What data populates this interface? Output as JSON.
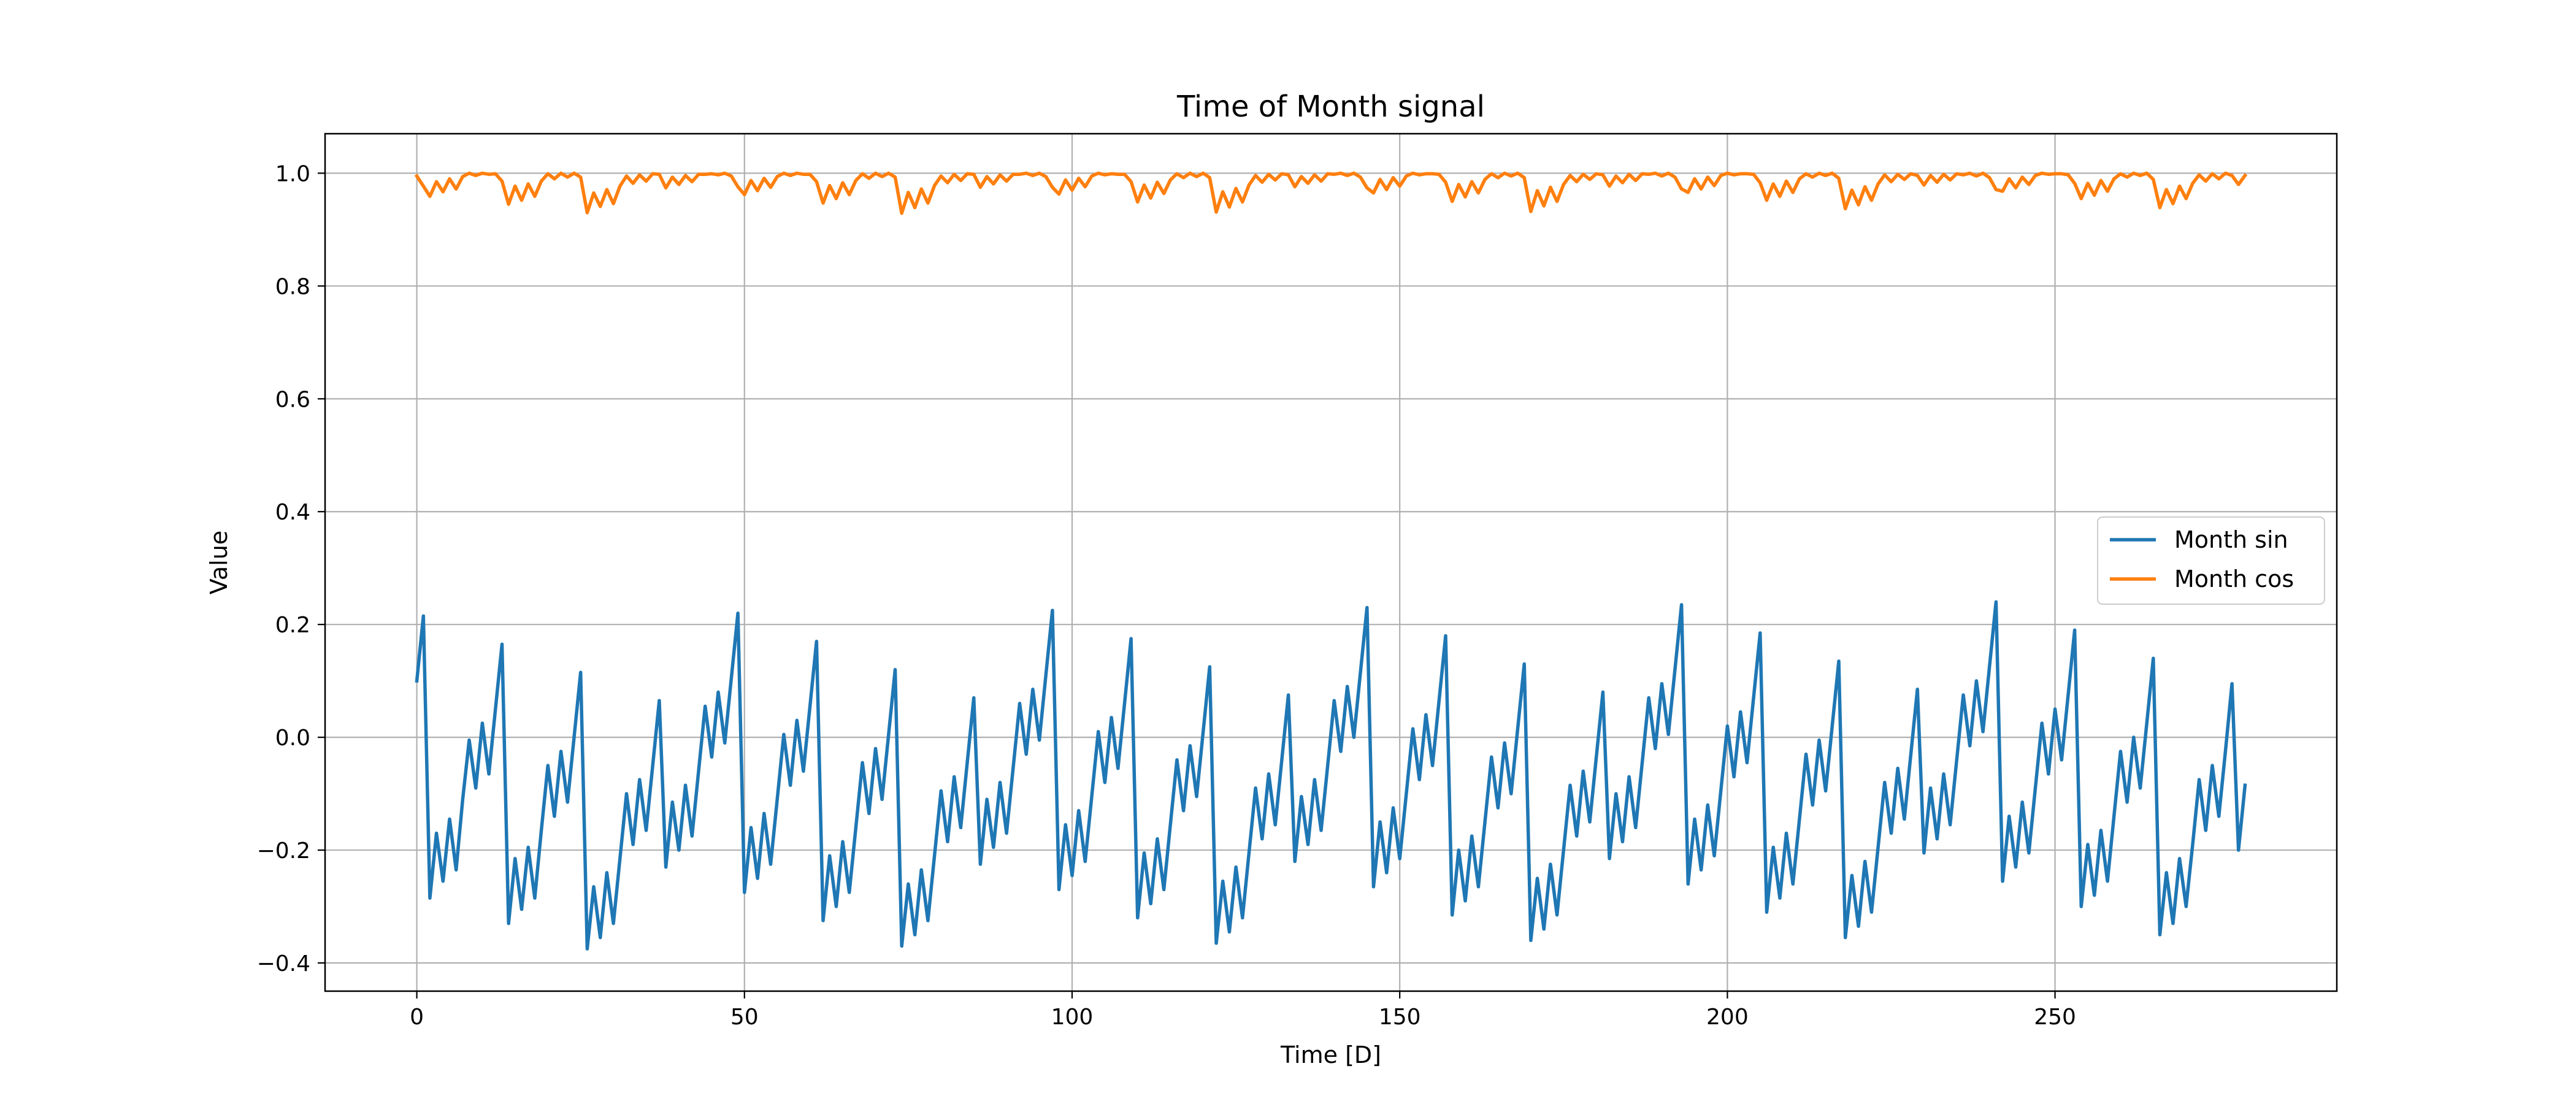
{
  "chart_data": {
    "type": "line",
    "title": "Time of Month signal",
    "xlabel": "Time [D]",
    "ylabel": "Value",
    "xlim": [
      -14,
      293
    ],
    "ylim": [
      -0.45,
      1.07
    ],
    "xticks": [
      0,
      50,
      100,
      150,
      200,
      250
    ],
    "xtick_labels": [
      "0",
      "50",
      "100",
      "150",
      "200",
      "250"
    ],
    "yticks": [
      -0.4,
      -0.2,
      0.0,
      0.2,
      0.4,
      0.6,
      0.8,
      1.0
    ],
    "ytick_labels": [
      "−0.4",
      "−0.2",
      "0.0",
      "0.2",
      "0.4",
      "0.6",
      "0.8",
      "1.0"
    ],
    "grid": true,
    "legend_position": "center-right",
    "series": [
      {
        "name": "Month sin",
        "color": "#1f77b4",
        "x": [
          0,
          1,
          2,
          3,
          4,
          5,
          6,
          7,
          8,
          9,
          10,
          11,
          12,
          13,
          14,
          15,
          16,
          17,
          18,
          19,
          20,
          21,
          22,
          23,
          24,
          25,
          26,
          27,
          28,
          29,
          30,
          31,
          32,
          33,
          34,
          35,
          36,
          37,
          38,
          39,
          40,
          41,
          42,
          43,
          44,
          45,
          46,
          47,
          48,
          49,
          50,
          51,
          52,
          53,
          54,
          55,
          56,
          57,
          58,
          59,
          60,
          61,
          62,
          63,
          64,
          65,
          66,
          67,
          68,
          69,
          70,
          71,
          72,
          73,
          74,
          75,
          76,
          77,
          78,
          79,
          80,
          81,
          82,
          83,
          84,
          85,
          86,
          87,
          88,
          89,
          90,
          91,
          92,
          93,
          94,
          95,
          96,
          97,
          98,
          99,
          100,
          101,
          102,
          103,
          104,
          105,
          106,
          107,
          108,
          109,
          110,
          111,
          112,
          113,
          114,
          115,
          116,
          117,
          118,
          119,
          120,
          121,
          122,
          123,
          124,
          125,
          126,
          127,
          128,
          129,
          130,
          131,
          132,
          133,
          134,
          135,
          136,
          137,
          138,
          139,
          140,
          141,
          142,
          143,
          144,
          145,
          146,
          147,
          148,
          149,
          150,
          151,
          152,
          153,
          154,
          155,
          156,
          157,
          158,
          159,
          160,
          161,
          162,
          163,
          164,
          165,
          166,
          167,
          168,
          169,
          170,
          171,
          172,
          173,
          174,
          175,
          176,
          177,
          178,
          179,
          180,
          181,
          182,
          183,
          184,
          185,
          186,
          187,
          188,
          189,
          190,
          191,
          192,
          193,
          194,
          195,
          196,
          197,
          198,
          199,
          200,
          201,
          202,
          203,
          204,
          205,
          206,
          207,
          208,
          209,
          210,
          211,
          212,
          213,
          214,
          215,
          216,
          217,
          218,
          219,
          220,
          221,
          222,
          223,
          224,
          225,
          226,
          227,
          228,
          229,
          230,
          231,
          232,
          233,
          234,
          235,
          236,
          237,
          238,
          239,
          240,
          241,
          242,
          243,
          244,
          245,
          246,
          247,
          248,
          249,
          250,
          251,
          252,
          253,
          254,
          255,
          256,
          257,
          258,
          259,
          260,
          261,
          262,
          263,
          264,
          265,
          266,
          267,
          268,
          269,
          270,
          271,
          272,
          273,
          274,
          275,
          276,
          277,
          278,
          279
        ],
        "y": [
          0.1,
          0.215,
          -0.285,
          -0.17,
          -0.255,
          -0.145,
          -0.235,
          -0.11,
          -0.005,
          -0.09,
          0.025,
          -0.065,
          0.05,
          0.165,
          -0.33,
          -0.215,
          -0.305,
          -0.195,
          -0.285,
          -0.165,
          -0.05,
          -0.14,
          -0.025,
          -0.115,
          0.0,
          0.115,
          -0.375,
          -0.265,
          -0.355,
          -0.24,
          -0.33,
          -0.215,
          -0.1,
          -0.19,
          -0.075,
          -0.165,
          -0.05,
          0.065,
          -0.23,
          -0.115,
          -0.2,
          -0.085,
          -0.175,
          -0.06,
          0.055,
          -0.035,
          0.08,
          -0.01,
          0.105,
          0.22,
          -0.275,
          -0.16,
          -0.25,
          -0.135,
          -0.225,
          -0.11,
          0.005,
          -0.085,
          0.03,
          -0.06,
          0.055,
          0.17,
          -0.325,
          -0.21,
          -0.3,
          -0.185,
          -0.275,
          -0.16,
          -0.045,
          -0.135,
          -0.02,
          -0.11,
          0.005,
          0.12,
          -0.37,
          -0.26,
          -0.35,
          -0.235,
          -0.325,
          -0.21,
          -0.095,
          -0.185,
          -0.07,
          -0.16,
          -0.045,
          0.07,
          -0.225,
          -0.11,
          -0.195,
          -0.08,
          -0.17,
          -0.055,
          0.06,
          -0.03,
          0.085,
          -0.005,
          0.11,
          0.225,
          -0.27,
          -0.155,
          -0.245,
          -0.13,
          -0.22,
          -0.105,
          0.01,
          -0.08,
          0.035,
          -0.055,
          0.06,
          0.175,
          -0.32,
          -0.205,
          -0.295,
          -0.18,
          -0.27,
          -0.155,
          -0.04,
          -0.13,
          -0.015,
          -0.105,
          0.01,
          0.125,
          -0.365,
          -0.255,
          -0.345,
          -0.23,
          -0.32,
          -0.205,
          -0.09,
          -0.18,
          -0.065,
          -0.155,
          -0.04,
          0.075,
          -0.22,
          -0.105,
          -0.19,
          -0.075,
          -0.165,
          -0.05,
          0.065,
          -0.025,
          0.09,
          0.0,
          0.115,
          0.23,
          -0.265,
          -0.15,
          -0.24,
          -0.125,
          -0.215,
          -0.1,
          0.015,
          -0.075,
          0.04,
          -0.05,
          0.065,
          0.18,
          -0.315,
          -0.2,
          -0.29,
          -0.175,
          -0.265,
          -0.15,
          -0.035,
          -0.125,
          -0.01,
          -0.1,
          0.015,
          0.13,
          -0.36,
          -0.25,
          -0.34,
          -0.225,
          -0.315,
          -0.2,
          -0.085,
          -0.175,
          -0.06,
          -0.15,
          -0.035,
          0.08,
          -0.215,
          -0.1,
          -0.185,
          -0.07,
          -0.16,
          -0.045,
          0.07,
          -0.02,
          0.095,
          0.005,
          0.12,
          0.235,
          -0.26,
          -0.145,
          -0.235,
          -0.12,
          -0.21,
          -0.095,
          0.02,
          -0.07,
          0.045,
          -0.045,
          0.07,
          0.185,
          -0.31,
          -0.195,
          -0.285,
          -0.17,
          -0.26,
          -0.145,
          -0.03,
          -0.12,
          -0.005,
          -0.095,
          0.02,
          0.135,
          -0.355,
          -0.245,
          -0.335,
          -0.22,
          -0.31,
          -0.195,
          -0.08,
          -0.17,
          -0.055,
          -0.145,
          -0.03,
          0.085,
          -0.205,
          -0.09,
          -0.18,
          -0.065,
          -0.155,
          -0.04,
          0.075,
          -0.015,
          0.1,
          0.01,
          0.125,
          0.24,
          -0.255,
          -0.14,
          -0.23,
          -0.115,
          -0.205,
          -0.09,
          0.025,
          -0.065,
          0.05,
          -0.04,
          0.075,
          0.19,
          -0.3,
          -0.19,
          -0.28,
          -0.165,
          -0.255,
          -0.14,
          -0.025,
          -0.115,
          0.0,
          -0.09,
          0.025,
          0.14,
          -0.35,
          -0.24,
          -0.33,
          -0.215,
          -0.3,
          -0.19,
          -0.075,
          -0.165,
          -0.05,
          -0.14,
          -0.025,
          0.095,
          -0.2,
          -0.085
        ]
      },
      {
        "name": "Month cos",
        "color": "#ff7f0e",
        "x": [
          0,
          1,
          2,
          3,
          4,
          5,
          6,
          7,
          8,
          9,
          10,
          11,
          12,
          13,
          14,
          15,
          16,
          17,
          18,
          19,
          20,
          21,
          22,
          23,
          24,
          25,
          26,
          27,
          28,
          29,
          30,
          31,
          32,
          33,
          34,
          35,
          36,
          37,
          38,
          39,
          40,
          41,
          42,
          43,
          44,
          45,
          46,
          47,
          48,
          49,
          50,
          51,
          52,
          53,
          54,
          55,
          56,
          57,
          58,
          59,
          60,
          61,
          62,
          63,
          64,
          65,
          66,
          67,
          68,
          69,
          70,
          71,
          72,
          73,
          74,
          75,
          76,
          77,
          78,
          79,
          80,
          81,
          82,
          83,
          84,
          85,
          86,
          87,
          88,
          89,
          90,
          91,
          92,
          93,
          94,
          95,
          96,
          97,
          98,
          99,
          100,
          101,
          102,
          103,
          104,
          105,
          106,
          107,
          108,
          109,
          110,
          111,
          112,
          113,
          114,
          115,
          116,
          117,
          118,
          119,
          120,
          121,
          122,
          123,
          124,
          125,
          126,
          127,
          128,
          129,
          130,
          131,
          132,
          133,
          134,
          135,
          136,
          137,
          138,
          139,
          140,
          141,
          142,
          143,
          144,
          145,
          146,
          147,
          148,
          149,
          150,
          151,
          152,
          153,
          154,
          155,
          156,
          157,
          158,
          159,
          160,
          161,
          162,
          163,
          164,
          165,
          166,
          167,
          168,
          169,
          170,
          171,
          172,
          173,
          174,
          175,
          176,
          177,
          178,
          179,
          180,
          181,
          182,
          183,
          184,
          185,
          186,
          187,
          188,
          189,
          190,
          191,
          192,
          193,
          194,
          195,
          196,
          197,
          198,
          199,
          200,
          201,
          202,
          203,
          204,
          205,
          206,
          207,
          208,
          209,
          210,
          211,
          212,
          213,
          214,
          215,
          216,
          217,
          218,
          219,
          220,
          221,
          222,
          223,
          224,
          225,
          226,
          227,
          228,
          229,
          230,
          231,
          232,
          233,
          234,
          235,
          236,
          237,
          238,
          239,
          240,
          241,
          242,
          243,
          244,
          245,
          246,
          247,
          248,
          249,
          250,
          251,
          252,
          253,
          254,
          255,
          256,
          257,
          258,
          259,
          260,
          261,
          262,
          263,
          264,
          265,
          266,
          267,
          268,
          269,
          270,
          271,
          272,
          273,
          274,
          275,
          276,
          277,
          278,
          279
        ],
        "y": [
          0.995,
          0.977,
          0.959,
          0.985,
          0.967,
          0.99,
          0.972,
          0.994,
          1.0,
          0.996,
          1.0,
          0.998,
          0.999,
          0.986,
          0.945,
          0.977,
          0.952,
          0.981,
          0.959,
          0.986,
          0.999,
          0.99,
          1.0,
          0.993,
          1.0,
          0.993,
          0.93,
          0.965,
          0.941,
          0.971,
          0.946,
          0.977,
          0.995,
          0.982,
          0.997,
          0.986,
          0.999,
          0.998,
          0.974,
          0.993,
          0.98,
          0.996,
          0.985,
          0.998,
          0.998,
          0.999,
          0.997,
          1.0,
          0.995,
          0.976,
          0.962,
          0.987,
          0.969,
          0.991,
          0.975,
          0.994,
          1.0,
          0.996,
          1.0,
          0.998,
          0.998,
          0.985,
          0.947,
          0.978,
          0.955,
          0.983,
          0.962,
          0.987,
          0.999,
          0.991,
          1.0,
          0.994,
          1.0,
          0.993,
          0.929,
          0.966,
          0.939,
          0.972,
          0.947,
          0.978,
          0.995,
          0.983,
          0.998,
          0.987,
          0.999,
          0.998,
          0.975,
          0.994,
          0.981,
          0.997,
          0.986,
          0.998,
          0.998,
          1.0,
          0.996,
          1.0,
          0.994,
          0.975,
          0.963,
          0.988,
          0.97,
          0.991,
          0.976,
          0.995,
          1.0,
          0.997,
          0.999,
          0.998,
          0.998,
          0.985,
          0.949,
          0.979,
          0.956,
          0.984,
          0.964,
          0.988,
          0.999,
          0.992,
          1.0,
          0.994,
          1.0,
          0.992,
          0.931,
          0.967,
          0.94,
          0.973,
          0.949,
          0.979,
          0.996,
          0.984,
          0.998,
          0.988,
          0.999,
          0.997,
          0.976,
          0.994,
          0.982,
          0.997,
          0.986,
          0.999,
          0.998,
          1.0,
          0.996,
          1.0,
          0.993,
          0.974,
          0.965,
          0.989,
          0.971,
          0.992,
          0.977,
          0.995,
          1.0,
          0.997,
          0.999,
          0.999,
          0.998,
          0.984,
          0.95,
          0.98,
          0.958,
          0.985,
          0.965,
          0.989,
          0.999,
          0.992,
          1.0,
          0.995,
          1.0,
          0.992,
          0.932,
          0.969,
          0.942,
          0.975,
          0.95,
          0.98,
          0.996,
          0.985,
          0.998,
          0.989,
          0.999,
          0.997,
          0.977,
          0.995,
          0.983,
          0.998,
          0.987,
          0.999,
          0.998,
          1.0,
          0.995,
          1.0,
          0.993,
          0.972,
          0.966,
          0.99,
          0.972,
          0.993,
          0.978,
          0.996,
          1.0,
          0.997,
          0.999,
          0.999,
          0.998,
          0.983,
          0.952,
          0.981,
          0.959,
          0.986,
          0.966,
          0.99,
          0.999,
          0.993,
          1.0,
          0.996,
          1.0,
          0.991,
          0.937,
          0.97,
          0.944,
          0.976,
          0.952,
          0.981,
          0.997,
          0.985,
          0.998,
          0.989,
          0.999,
          0.996,
          0.979,
          0.996,
          0.984,
          0.998,
          0.988,
          0.999,
          0.997,
          1.0,
          0.995,
          1.0,
          0.992,
          0.971,
          0.968,
          0.99,
          0.974,
          0.993,
          0.98,
          0.996,
          1.0,
          0.998,
          0.999,
          0.999,
          0.997,
          0.982,
          0.955,
          0.982,
          0.961,
          0.987,
          0.968,
          0.99,
          0.999,
          0.993,
          1.0,
          0.996,
          1.0,
          0.989,
          0.939,
          0.971,
          0.946,
          0.977,
          0.955,
          0.982,
          0.997,
          0.986,
          0.999,
          0.99,
          1.0,
          0.996,
          0.98,
          0.996
        ]
      }
    ]
  }
}
